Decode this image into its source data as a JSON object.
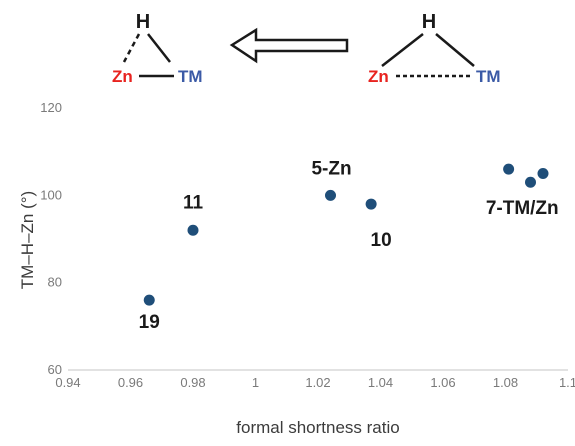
{
  "diagram": {
    "left": {
      "h": "H",
      "zn": "Zn",
      "tm": "TM"
    },
    "right": {
      "h": "H",
      "zn": "Zn",
      "tm": "TM"
    },
    "colors": {
      "zn": "#e8231f",
      "tm": "#3b5aa6",
      "bond": "#1a1a1a"
    }
  },
  "chart_data": {
    "type": "scatter",
    "xlabel": "formal shortness ratio",
    "ylabel": "TM–H–Zn (°)",
    "xlim": [
      0.94,
      1.1
    ],
    "ylim": [
      60,
      120
    ],
    "x_ticks": [
      "0.94",
      "0.96",
      "0.98",
      "1",
      "1.02",
      "1.04",
      "1.06",
      "1.08",
      "1.1"
    ],
    "y_ticks": [
      "60",
      "80",
      "100",
      "120"
    ],
    "grid": false,
    "marker_color": "#1f4e79",
    "points": [
      {
        "x": 0.966,
        "y": 76
      },
      {
        "x": 0.98,
        "y": 92
      },
      {
        "x": 1.024,
        "y": 100
      },
      {
        "x": 1.037,
        "y": 98
      },
      {
        "x": 1.081,
        "y": 106
      },
      {
        "x": 1.088,
        "y": 103
      },
      {
        "x": 1.092,
        "y": 105
      }
    ],
    "labels": [
      {
        "text": "19",
        "x": 0.966,
        "y": 76
      },
      {
        "text": "11",
        "x": 0.98,
        "y": 92
      },
      {
        "text": "5-Zn",
        "x": 1.024,
        "y": 100
      },
      {
        "text": "10",
        "x": 1.037,
        "y": 98
      },
      {
        "text": "7-TM/Zn",
        "x": 1.086,
        "y": 103
      }
    ]
  }
}
